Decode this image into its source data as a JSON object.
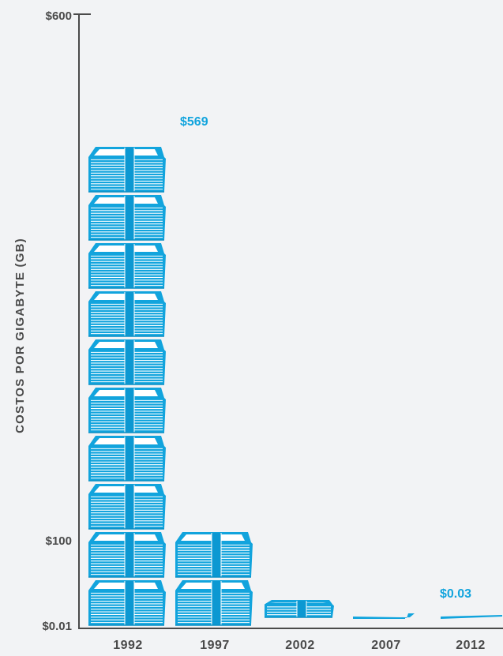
{
  "colors": {
    "money": "#12a4dd",
    "money_dark": "#0b8fc4",
    "band": "#0c98d2",
    "axis": "#4a4a4a",
    "background": "#f2f3f5"
  },
  "chart_data": {
    "type": "bar",
    "title": "",
    "xlabel": "",
    "ylabel": "COSTOS POR GIGABYTE (GB)",
    "categories": [
      "1992",
      "1997",
      "2002",
      "2007",
      "2012"
    ],
    "values": [
      569,
      100,
      10,
      1,
      0.03
    ],
    "ylim": [
      0.01,
      600
    ],
    "y_tick_labels": [
      "$600",
      "$100",
      "$0.01"
    ],
    "data_labels": [
      {
        "category": "1992",
        "text": "$569"
      },
      {
        "category": "2012",
        "text": "$0.03"
      }
    ],
    "grid": false,
    "legend": "none",
    "mark": "stacks of banknote bundles"
  }
}
